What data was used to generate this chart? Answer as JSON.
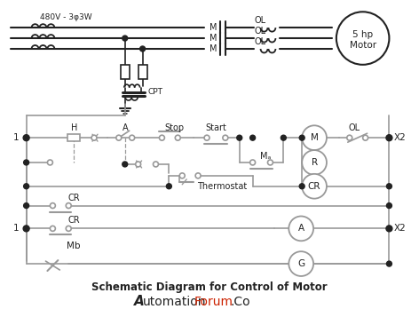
{
  "title": "Schematic Diagram for Control of Motor",
  "bg_color": "#ffffff",
  "line_color": "#999999",
  "dark_color": "#222222",
  "label_480": "480V - 3φ3W",
  "motor_label": "5 hp\nMotor"
}
